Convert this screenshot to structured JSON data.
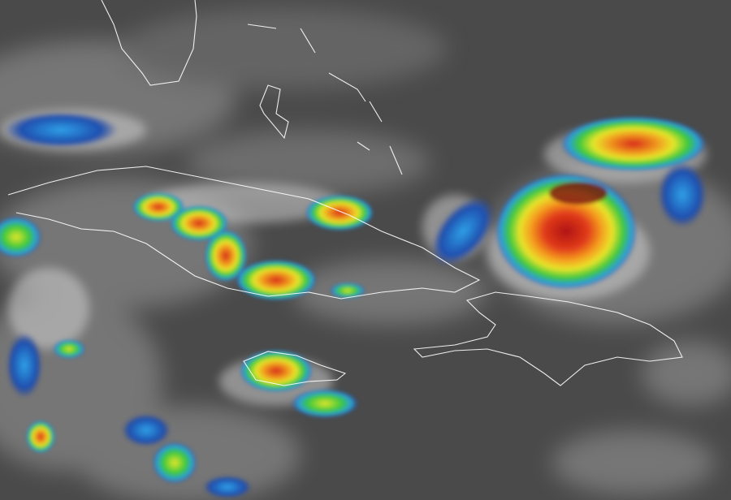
{
  "image": {
    "kind": "enhanced infrared satellite imagery",
    "colors": {
      "background": "#4a4a4a",
      "cloud_gray": "#bdbdbd",
      "coastline": "#ffffff",
      "scale": [
        "#1e3c9c",
        "#2fa0e6",
        "#3cc83c",
        "#e6e62a",
        "#f08c1e",
        "#d21e1e",
        "#6e0f0f"
      ]
    },
    "features": [
      "storm-cell-northeast",
      "storm-cell-cuba",
      "storm-cell-jamaica",
      "coastline-cuba",
      "coastline-hispaniola",
      "coastline-jamaica",
      "coastline-florida",
      "coastline-bahamas"
    ]
  }
}
